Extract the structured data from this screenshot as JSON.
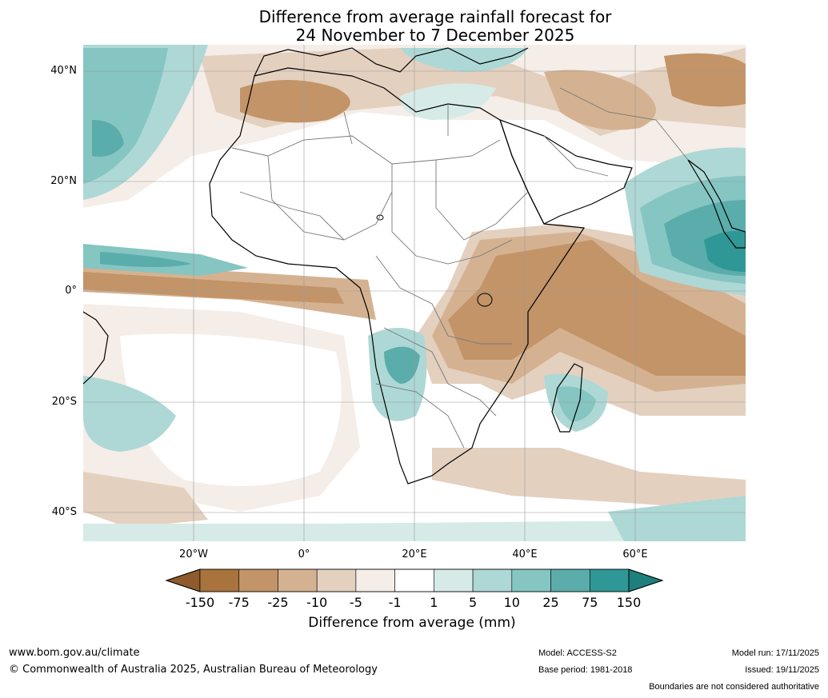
{
  "title": {
    "line1": "Difference from average rainfall forecast for",
    "line2": "24 November to 7 December 2025"
  },
  "map": {
    "lat_ticks": [
      "40°N",
      "20°N",
      "0°",
      "20°S",
      "40°S"
    ],
    "lon_ticks": [
      "20°W",
      "0°",
      "20°E",
      "40°E",
      "60°E"
    ]
  },
  "colorbar": {
    "title": "Difference from average (mm)",
    "labels": [
      "-150",
      "-75",
      "-25",
      "-10",
      "-5",
      "-1",
      "1",
      "5",
      "10",
      "25",
      "75",
      "150"
    ],
    "colors": [
      "#a8733c",
      "#c29468",
      "#d4b291",
      "#e4d0bf",
      "#f5ede7",
      "#ffffff",
      "#d6ebe8",
      "#add8d5",
      "#85c5c2",
      "#5aadab",
      "#2f9896"
    ],
    "under_color": "#8d5b2c",
    "over_color": "#1f7f7d"
  },
  "footer": {
    "website": "www.bom.gov.au/climate",
    "copyright": "© Commonwealth of Australia 2025, Australian Bureau of Meteorology",
    "model": "Model: ACCESS-S2",
    "base_period": "Base period: 1981-2018",
    "model_run": "Model run: 17/11/2025",
    "issued": "Issued: 19/11/2025",
    "disclaimer": "Boundaries are not considered authoritative"
  }
}
